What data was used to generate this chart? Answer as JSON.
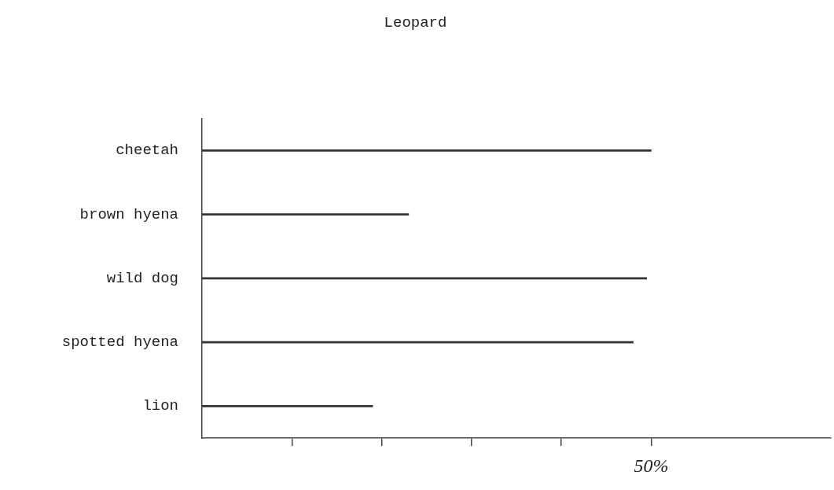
{
  "chart_data": {
    "type": "bar",
    "orientation": "horizontal",
    "title": "Leopard",
    "categories": [
      "cheetah",
      "brown hyena",
      "wild dog",
      "spotted hyena",
      "lion"
    ],
    "values": [
      50,
      23,
      49.5,
      48,
      19
    ],
    "color": "#333333",
    "xlim": [
      0,
      70
    ],
    "xticks": [
      {
        "value": 10,
        "label": null
      },
      {
        "value": 20,
        "label": null
      },
      {
        "value": 30,
        "label": null
      },
      {
        "value": 40,
        "label": null
      },
      {
        "value": 50,
        "label": "50%"
      }
    ],
    "grid": false,
    "legend": false
  }
}
